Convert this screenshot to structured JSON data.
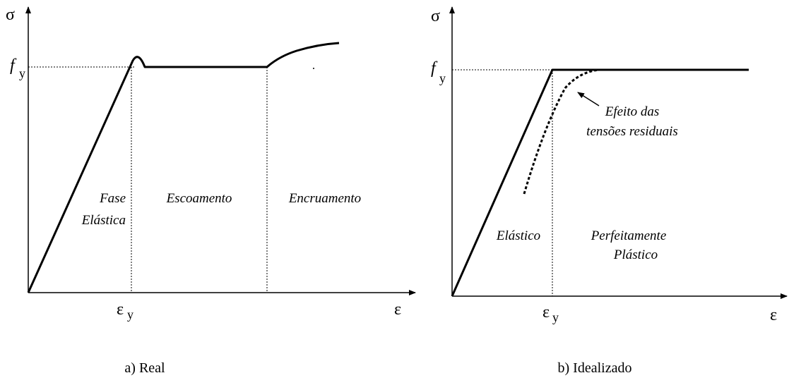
{
  "panels": [
    {
      "axis_y": "σ",
      "fy": {
        "main": "f",
        "sub": "y"
      },
      "ey": {
        "main": "ε",
        "sub": "y"
      },
      "axis_x": "ε",
      "regions": [
        {
          "lines": [
            "Fase",
            "Elástica"
          ]
        },
        {
          "lines": [
            "Escoamento"
          ]
        },
        {
          "lines": [
            "Encruamento"
          ]
        }
      ],
      "caption": "a) Real"
    },
    {
      "axis_y": "σ",
      "fy": {
        "main": "f",
        "sub": "y"
      },
      "ey": {
        "main": "ε",
        "sub": "y"
      },
      "axis_x": "ε",
      "annotation": [
        "Efeito das",
        "tensões residuais"
      ],
      "regions": [
        {
          "lines": [
            "Elástico"
          ]
        },
        {
          "lines": [
            "Perfeitamente",
            "Plástico"
          ]
        }
      ],
      "caption": "b) Idealizado"
    }
  ]
}
